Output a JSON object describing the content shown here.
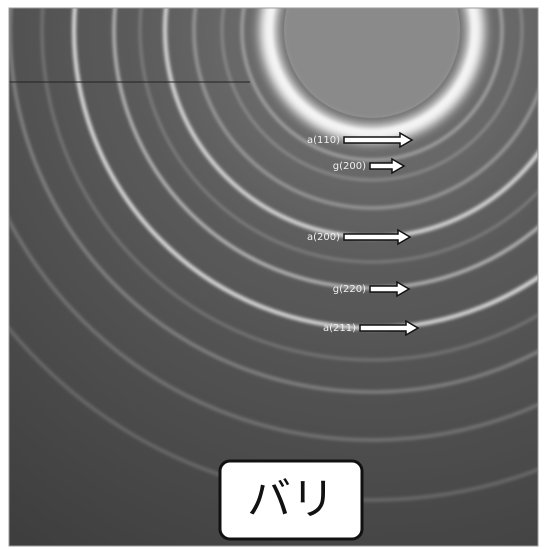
{
  "annotations": [
    {
      "label": "a(110)"
    },
    {
      "label": "g(200)"
    },
    {
      "label": "a(200)"
    },
    {
      "label": "g(220)"
    },
    {
      "label": "a(211)"
    }
  ],
  "caption": "バリ"
}
